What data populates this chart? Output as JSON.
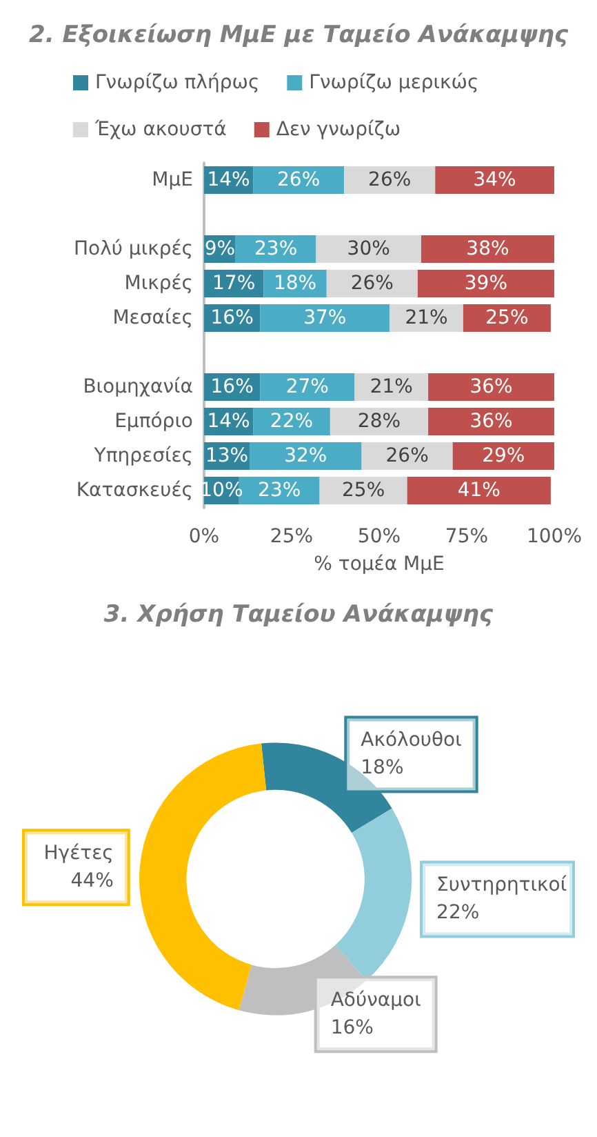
{
  "chart_data": [
    {
      "type": "bar",
      "title": "2. Εξοικείωση ΜμΕ με Ταμείο Ανάκαμψης",
      "orientation": "horizontal",
      "stacked": true,
      "xlabel": "% τομέα ΜμΕ",
      "legend": "top",
      "grid": false,
      "categories": [
        "ΜμΕ",
        null,
        "Πολύ μικρές",
        "Μικρές",
        "Μεσαίες",
        null,
        "Βιομηχανία",
        "Εμπόριο",
        "Υπηρεσίες",
        "Κατασκευές"
      ],
      "xlim": [
        0,
        100
      ],
      "xticks": [
        {
          "value": 0,
          "label": "0%"
        },
        {
          "value": 25,
          "label": "25%"
        },
        {
          "value": 50,
          "label": "50%"
        },
        {
          "value": 75,
          "label": "75%"
        },
        {
          "value": 100,
          "label": "100%"
        }
      ],
      "series": [
        {
          "name": "Γνωρίζω πλήρως",
          "color": "#31859c",
          "values": [
            14,
            null,
            9,
            17,
            16,
            null,
            16,
            14,
            13,
            10
          ],
          "value_labels": [
            "14%",
            null,
            "9%",
            "17%",
            "16%",
            null,
            "16%",
            "14%",
            "13%",
            "10%"
          ]
        },
        {
          "name": "Γνωρίζω μερικώς",
          "color": "#4bacc6",
          "values": [
            26,
            null,
            23,
            18,
            37,
            null,
            27,
            22,
            32,
            23
          ],
          "value_labels": [
            "26%",
            null,
            "23%",
            "18%",
            "37%",
            null,
            "27%",
            "22%",
            "32%",
            "23%"
          ]
        },
        {
          "name": "Έχω ακουστά",
          "color": "#d9d9d9",
          "values": [
            26,
            null,
            30,
            26,
            21,
            null,
            21,
            28,
            26,
            25
          ],
          "value_labels": [
            "26%",
            null,
            "30%",
            "26%",
            "21%",
            null,
            "21%",
            "28%",
            "26%",
            "25%"
          ]
        },
        {
          "name": "Δεν γνωρίζω",
          "color": "#c0504d",
          "values": [
            34,
            null,
            38,
            39,
            25,
            null,
            36,
            36,
            29,
            41
          ],
          "value_labels": [
            "34%",
            null,
            "38%",
            "39%",
            "25%",
            null,
            "36%",
            "36%",
            "29%",
            "41%"
          ]
        }
      ]
    },
    {
      "type": "donut",
      "title": "3. Χρήση Ταμείου Ανάκαμψης",
      "categories": [
        "Ακόλουθοι",
        "Συντηρητικοί",
        "Αδύναμοι",
        "Ηγέτες"
      ],
      "values": [
        18,
        22,
        16,
        44
      ],
      "colors": [
        "#31859c",
        "#92cddc",
        "#bfbfbf",
        "#ffc000"
      ],
      "value_labels": [
        "18%",
        "22%",
        "16%",
        "44%"
      ]
    }
  ]
}
